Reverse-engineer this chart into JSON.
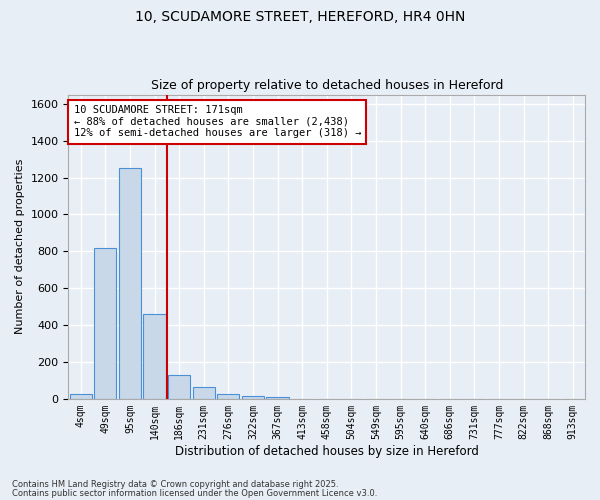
{
  "title1": "10, SCUDAMORE STREET, HEREFORD, HR4 0HN",
  "title2": "Size of property relative to detached houses in Hereford",
  "xlabel": "Distribution of detached houses by size in Hereford",
  "ylabel": "Number of detached properties",
  "bar_categories": [
    "4sqm",
    "49sqm",
    "95sqm",
    "140sqm",
    "186sqm",
    "231sqm",
    "276sqm",
    "322sqm",
    "367sqm",
    "413sqm",
    "458sqm",
    "504sqm",
    "549sqm",
    "595sqm",
    "640sqm",
    "686sqm",
    "731sqm",
    "777sqm",
    "822sqm",
    "868sqm",
    "913sqm"
  ],
  "bar_values": [
    25,
    820,
    1250,
    460,
    130,
    65,
    28,
    18,
    10,
    0,
    0,
    0,
    0,
    0,
    0,
    0,
    0,
    0,
    0,
    0,
    0
  ],
  "bar_color": "#c8d8e8",
  "bar_edge_color": "#4a90d9",
  "vline_color": "#cc0000",
  "annotation_text": "10 SCUDAMORE STREET: 171sqm\n← 88% of detached houses are smaller (2,438)\n12% of semi-detached houses are larger (318) →",
  "annotation_box_color": "#ffffff",
  "annotation_box_edge": "#cc0000",
  "background_color": "#e8eef5",
  "grid_color": "#ffffff",
  "ylim": [
    0,
    1650
  ],
  "yticks": [
    0,
    200,
    400,
    600,
    800,
    1000,
    1200,
    1400,
    1600
  ],
  "footer1": "Contains HM Land Registry data © Crown copyright and database right 2025.",
  "footer2": "Contains public sector information licensed under the Open Government Licence v3.0."
}
